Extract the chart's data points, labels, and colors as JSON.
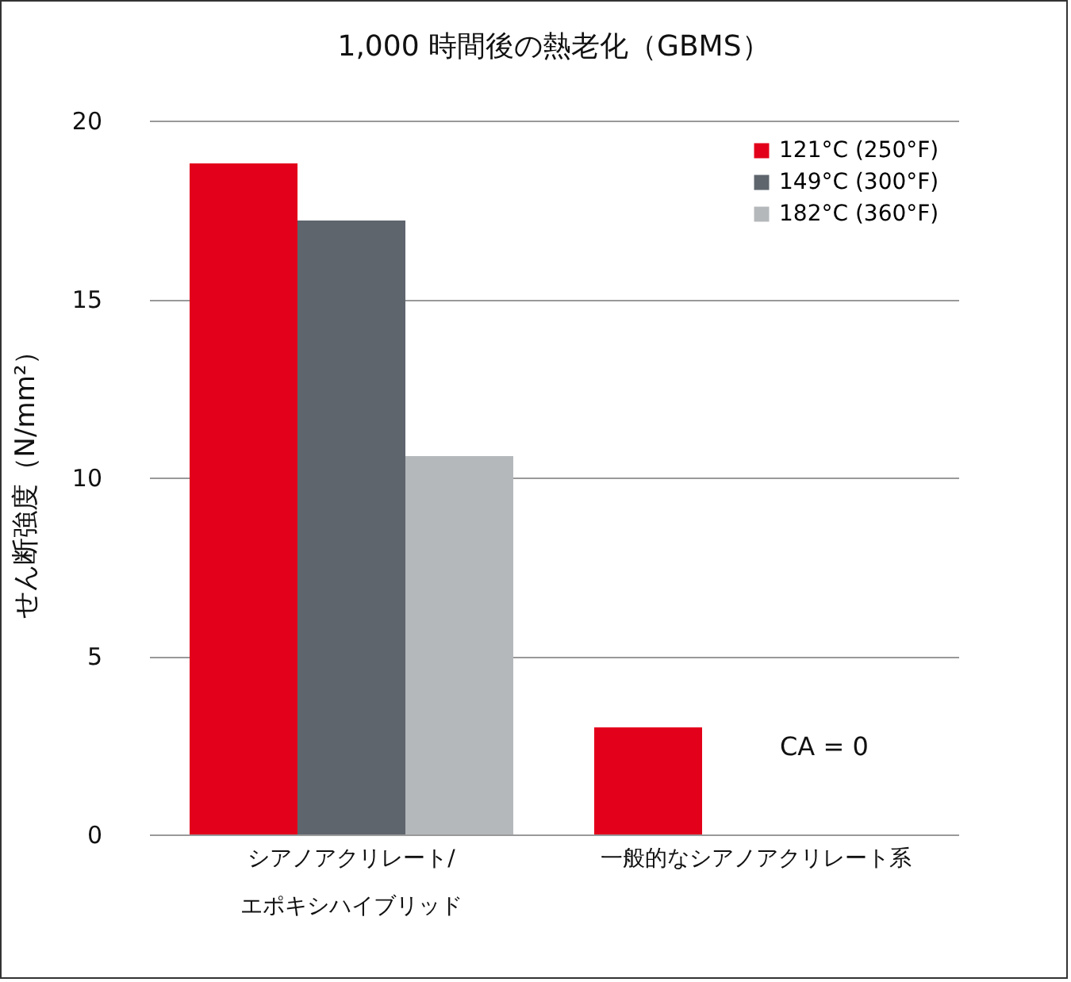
{
  "chart_data": {
    "type": "bar",
    "title": "1,000 時間後の熱老化（GBMS）",
    "ylabel": "せん断強度（N/mm²）",
    "categories": [
      "シアノアクリレート/\nエポキシハイブリッド",
      "一般的なシアノアクリレート系"
    ],
    "series": [
      {
        "name": "121°C (250°F)",
        "color": "#e2001a",
        "values": [
          18.8,
          3.0
        ]
      },
      {
        "name": "149°C (300°F)",
        "color": "#5e656d",
        "values": [
          17.2,
          0
        ]
      },
      {
        "name": "182°C (360°F)",
        "color": "#b5b8bb",
        "values": [
          10.6,
          0
        ]
      }
    ],
    "ylim": [
      0,
      20
    ],
    "yticks": [
      0,
      5,
      10,
      15,
      20
    ],
    "grid": "y",
    "legend": "top right",
    "annotations": [
      "CA = 0"
    ]
  }
}
